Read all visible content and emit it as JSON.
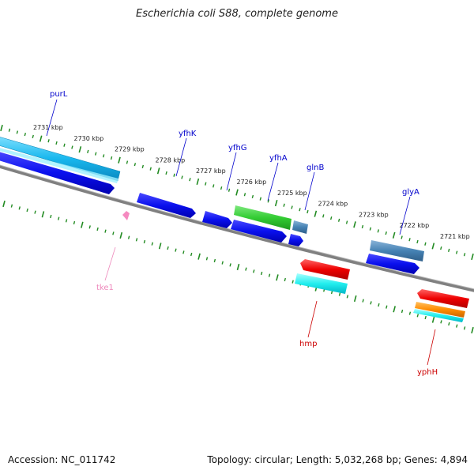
{
  "title": "Escherichia coli S88, complete genome",
  "footer": {
    "accession": "Accession: NC_011742",
    "stats": "Topology: circular; Length: 5,032,268 bp; Genes: 4,894"
  },
  "colors": {
    "backbone": "#808080",
    "tick": "#228B22",
    "forward_label": "#0000cc",
    "reverse_label": "#cc0000",
    "rna_label": "#ee88bb"
  },
  "scale": {
    "ticks": [
      "2731 kbp",
      "2730 kbp",
      "2729 kbp",
      "2728 kbp",
      "2727 kbp",
      "2726 kbp",
      "2725 kbp",
      "2724 kbp",
      "2723 kbp",
      "2722 kbp",
      "2721 kbp"
    ]
  },
  "genes": [
    {
      "name": "purL",
      "strand": "forward"
    },
    {
      "name": "yfhK",
      "strand": "forward"
    },
    {
      "name": "yfhG",
      "strand": "forward"
    },
    {
      "name": "yfhA",
      "strand": "forward"
    },
    {
      "name": "glnB",
      "strand": "forward"
    },
    {
      "name": "glyA",
      "strand": "forward"
    },
    {
      "name": "tke1",
      "strand": "reverse-rna"
    },
    {
      "name": "hmp",
      "strand": "reverse"
    },
    {
      "name": "yphH",
      "strand": "reverse"
    }
  ]
}
